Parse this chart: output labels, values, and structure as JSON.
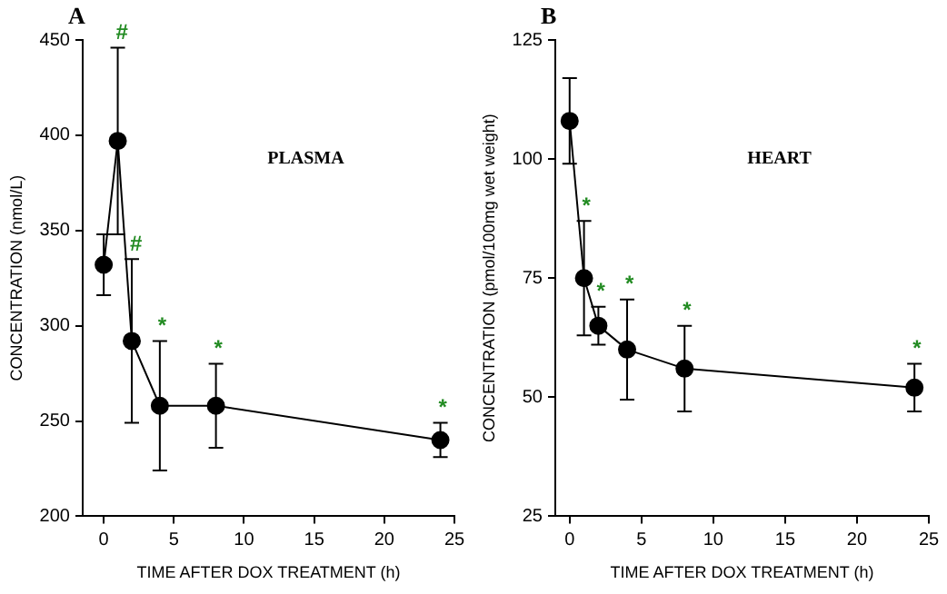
{
  "chart_data": [
    {
      "type": "line",
      "title": "A",
      "xlabel": "TIME AFTER DOX TREATMENT (h)",
      "ylabel": "CONCENTRATION (nmol/L)",
      "x": [
        0,
        1,
        2,
        4,
        8,
        24
      ],
      "series": [
        {
          "color": "#000000",
          "values": [
            332,
            397,
            292,
            258,
            258,
            240
          ],
          "errors": [
            16,
            49,
            43,
            34,
            22,
            9
          ]
        }
      ],
      "xlim": [
        -1.5,
        25
      ],
      "ylim": [
        200,
        450
      ],
      "xticks": [
        0,
        5,
        10,
        15,
        20,
        25
      ],
      "yticks": [
        200,
        250,
        300,
        350,
        400,
        450
      ],
      "grid": false,
      "marker": "circle",
      "line_style": "solid",
      "legend": false,
      "annotations": [
        "PLASMA",
        {
          "text": "#",
          "x": 1,
          "y": 446
        },
        {
          "text": "#",
          "x": 2,
          "y": 335
        },
        {
          "text": "*",
          "x": 4,
          "y": 292
        },
        {
          "text": "*",
          "x": 8,
          "y": 280
        },
        {
          "text": "*",
          "x": 24,
          "y": 249
        }
      ]
    },
    {
      "type": "line",
      "title": "B",
      "xlabel": "TIME AFTER DOX TREATMENT (h)",
      "ylabel": "CONCENTRATION (pmol/100mg wet weight)",
      "x": [
        0,
        1,
        2,
        4,
        8,
        24
      ],
      "series": [
        {
          "color": "#000000",
          "values": [
            108,
            75,
            65,
            60,
            56,
            52
          ],
          "errors": [
            9,
            12,
            4,
            10.5,
            9,
            5
          ]
        }
      ],
      "xlim": [
        -1,
        25
      ],
      "ylim": [
        25,
        125
      ],
      "xticks": [
        0,
        5,
        10,
        15,
        20,
        25
      ],
      "yticks": [
        25,
        50,
        75,
        100,
        125
      ],
      "grid": false,
      "marker": "circle",
      "line_style": "solid",
      "legend": false,
      "annotations": [
        "HEART",
        {
          "text": "*",
          "x": 1,
          "y": 87
        },
        {
          "text": "*",
          "x": 2,
          "y": 69
        },
        {
          "text": "*",
          "x": 4,
          "y": 70.5
        },
        {
          "text": "*",
          "x": 8,
          "y": 65
        },
        {
          "text": "*",
          "x": 24,
          "y": 57
        }
      ]
    }
  ]
}
